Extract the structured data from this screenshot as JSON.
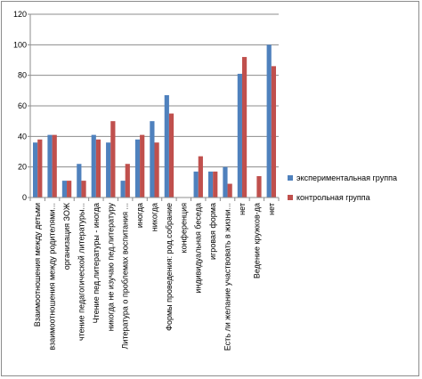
{
  "chart_data": {
    "type": "bar",
    "title": "",
    "xlabel": "",
    "ylabel": "",
    "ylim": [
      0,
      120
    ],
    "yticks": [
      0,
      20,
      40,
      60,
      80,
      100,
      120
    ],
    "grid": true,
    "legend_position": "right",
    "categories": [
      "Взаимоотношения между детьми",
      "взаимоотношения между родителями...",
      "организация ЗОЖ",
      "чтение педагогической литературы...",
      "Чтение пед.литературы - иногда",
      "никогда не изучаю пед.литературу",
      "Литература о проблемах воспитания ...",
      "иногда",
      "никогда",
      "Формы проведения: род.собрание",
      "конференция",
      "индивидуальная беседа",
      "игровая форма",
      "Есть ли желание участвовать в жизни...",
      "нет",
      "Ведение кружков-да",
      "нет"
    ],
    "series": [
      {
        "name": "экспериментальная группа",
        "color": "#4f81bd",
        "values": [
          36,
          41,
          11,
          22,
          41,
          36,
          11,
          38,
          50,
          67,
          0,
          17,
          17,
          20,
          81,
          0,
          100
        ]
      },
      {
        "name": "контрольная группа",
        "color": "#c0504d",
        "values": [
          38,
          41,
          11,
          11,
          38,
          50,
          22,
          41,
          36,
          55,
          0,
          27,
          17,
          9,
          92,
          14,
          86
        ]
      }
    ]
  }
}
